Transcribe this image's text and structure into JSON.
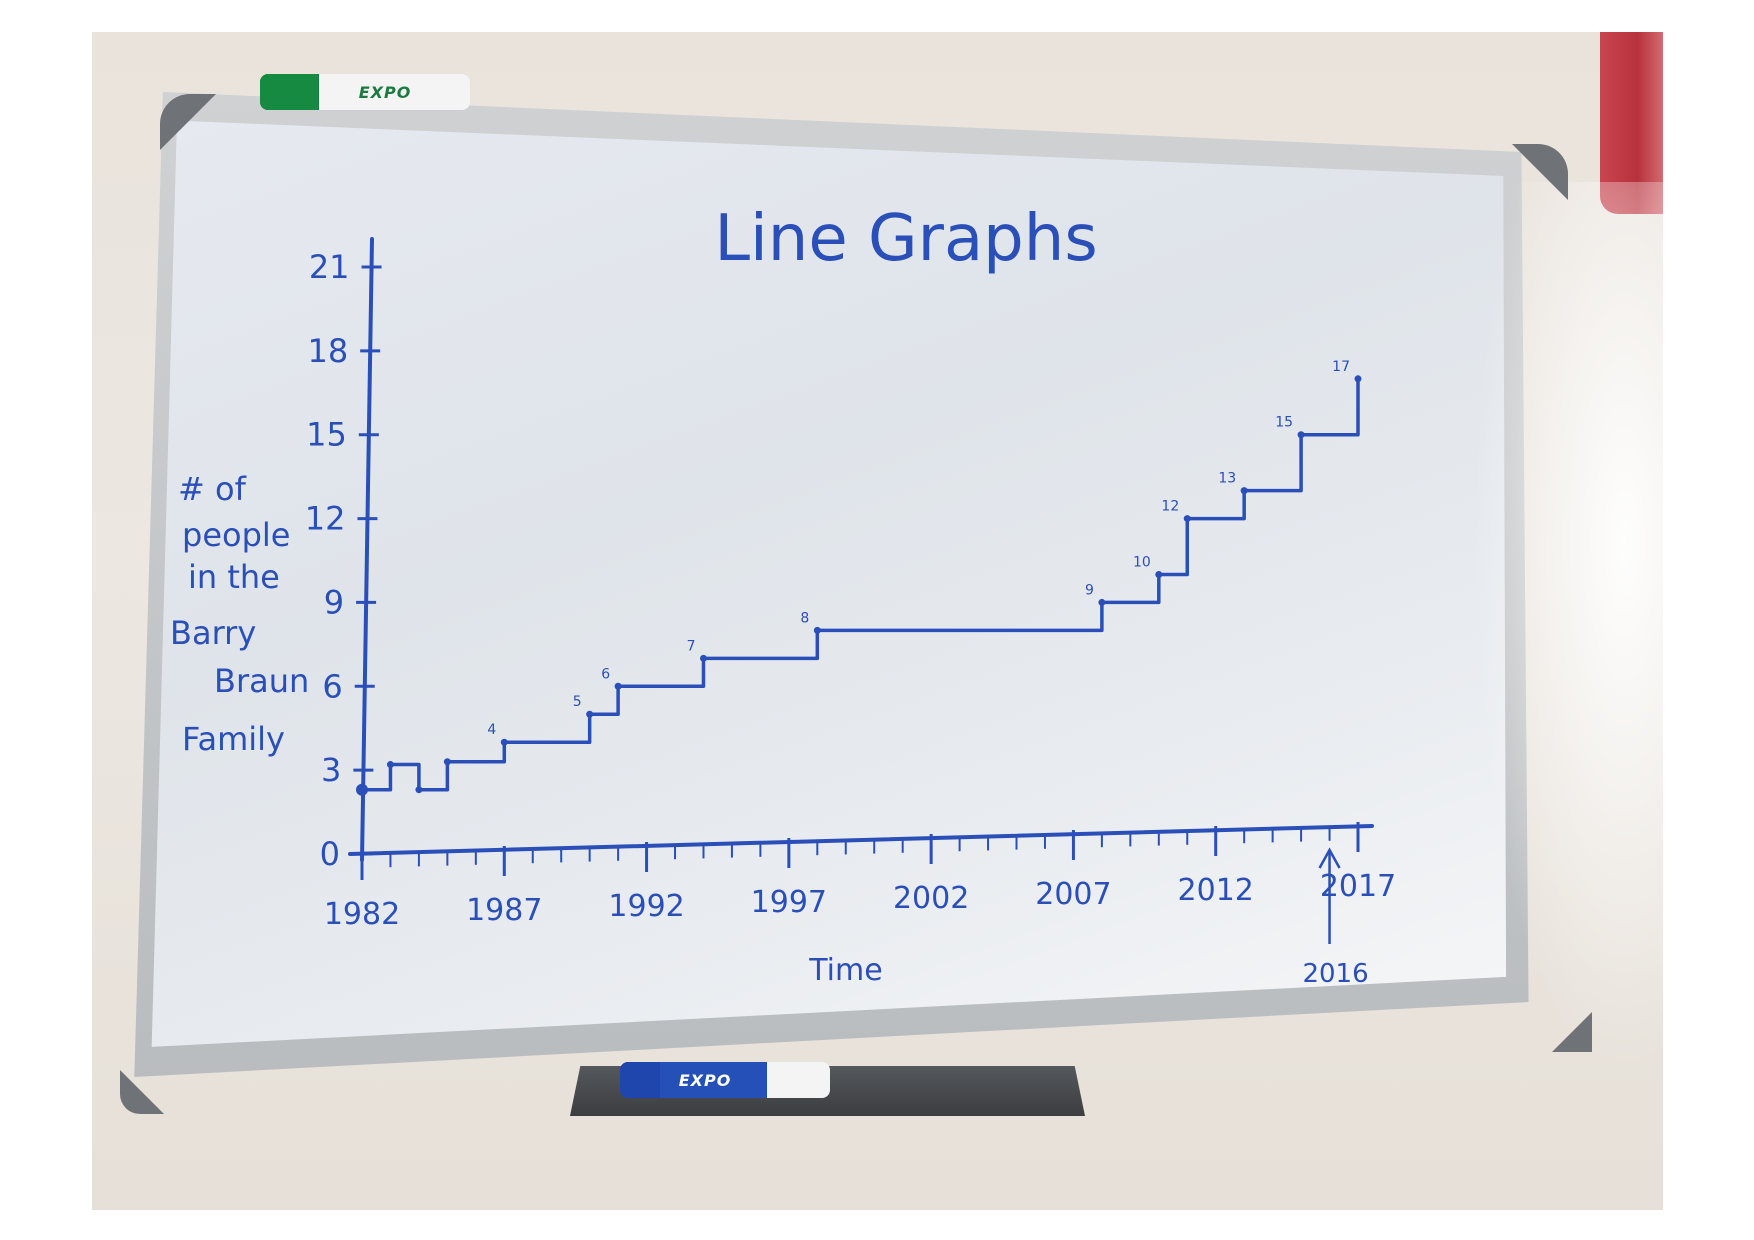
{
  "colors": {
    "ink": "#2a4fb8",
    "board": "#e3e7ec",
    "wall": "#e9e3dc",
    "frame": "#c4c7ca",
    "tray": "#45484c"
  },
  "icons": {
    "green_marker": "green-marker-icon",
    "blue_marker": "blue-marker-icon"
  },
  "markers": {
    "green_brand": "EXPO",
    "blue_brand": "EXPO"
  },
  "chart_data": {
    "type": "line",
    "title": "Line Graphs",
    "xlabel": "Time",
    "ylabel": "# of people in the Barry Braun Family",
    "ylabel_lines": [
      "# of",
      "people",
      "in the",
      "Barry",
      "Braun",
      "Family"
    ],
    "xlim": [
      1982,
      2017
    ],
    "ylim": [
      0,
      21
    ],
    "x_ticks": [
      "1982",
      "1987",
      "1992",
      "1997",
      "2002",
      "2007",
      "2012",
      "2017"
    ],
    "y_ticks": [
      "0",
      "3",
      "6",
      "9",
      "12",
      "15",
      "18",
      "21"
    ],
    "step": true,
    "x": [
      1982,
      1983,
      1984,
      1985,
      1987,
      1990,
      1991,
      1994,
      1998,
      2008,
      2010,
      2011,
      2013,
      2015,
      2017
    ],
    "y": [
      2.3,
      3.2,
      2.3,
      3.3,
      4,
      5,
      6,
      7,
      8,
      9,
      10,
      12,
      13,
      15,
      17
    ],
    "point_labels": [
      "",
      "",
      "",
      "",
      "4",
      "5",
      "6",
      "7",
      "8",
      "9",
      "10",
      "12",
      "13",
      "15",
      "17"
    ],
    "annotation": {
      "text": "2016",
      "x": 2016
    },
    "grid": false,
    "legend": "none"
  }
}
